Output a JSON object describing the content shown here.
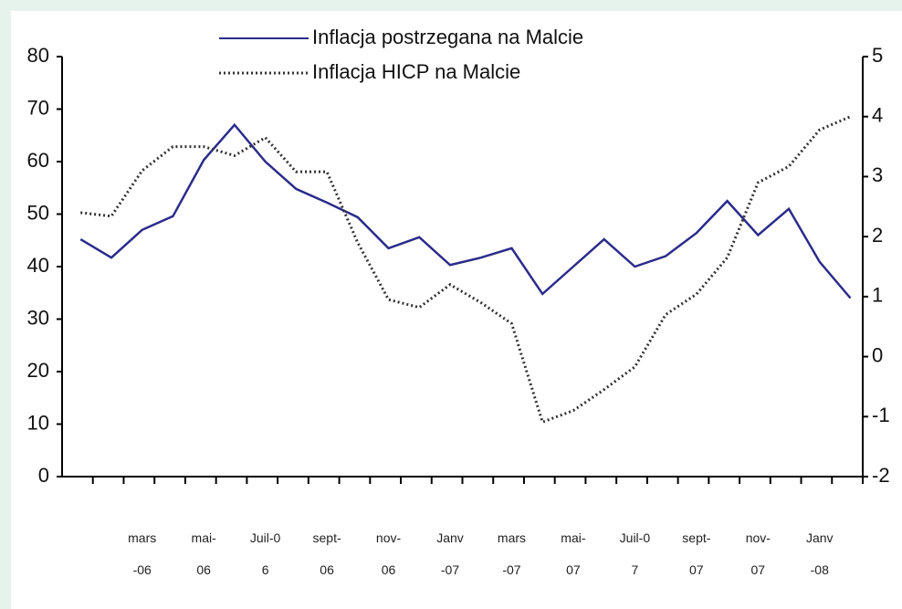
{
  "chart_data": {
    "type": "line",
    "categories": [
      null,
      null,
      "mars-06",
      null,
      "mai-06",
      null,
      "Juil-06",
      null,
      "sept-06",
      null,
      "nov-06",
      null,
      "Janv-07",
      null,
      "mars-07",
      null,
      "mai-07",
      null,
      "Juil-07",
      null,
      "sept-07",
      null,
      "nov-07",
      null,
      "Janv-08",
      null
    ],
    "series": [
      {
        "name": "Inflacja postrzegana na Malcie",
        "color": "#2b2b8a",
        "style": "solid",
        "values": [
          45.2,
          41.7,
          47,
          49.6,
          60.3,
          67,
          60,
          54.8,
          52.2,
          49.4,
          43.5,
          45.6,
          40.3,
          41.7,
          43.5,
          34.8,
          40,
          45.2,
          40,
          42,
          46.4,
          52.5,
          46,
          51,
          40.9,
          34
        ]
      },
      {
        "name": "Inflacja HICP na Malcie",
        "color": "#333333",
        "style": "dotted",
        "axis": "y2",
        "values": [
          2.4,
          2.34,
          3.1,
          3.5,
          3.5,
          3.35,
          3.65,
          3.08,
          3.08,
          1.9,
          0.95,
          0.82,
          1.2,
          0.9,
          0.55,
          -1.09,
          -0.9,
          -0.55,
          -0.17,
          0.7,
          1.04,
          1.65,
          2.9,
          3.17,
          3.78,
          4.0
        ]
      }
    ],
    "ylim": [
      0,
      80
    ],
    "yticks": [
      0,
      10,
      20,
      30,
      40,
      50,
      60,
      70,
      80
    ],
    "y2lim": [
      -2,
      5
    ],
    "y2ticks": [
      -2,
      -1,
      0,
      1,
      2,
      3,
      4,
      5
    ],
    "legend": "top"
  }
}
